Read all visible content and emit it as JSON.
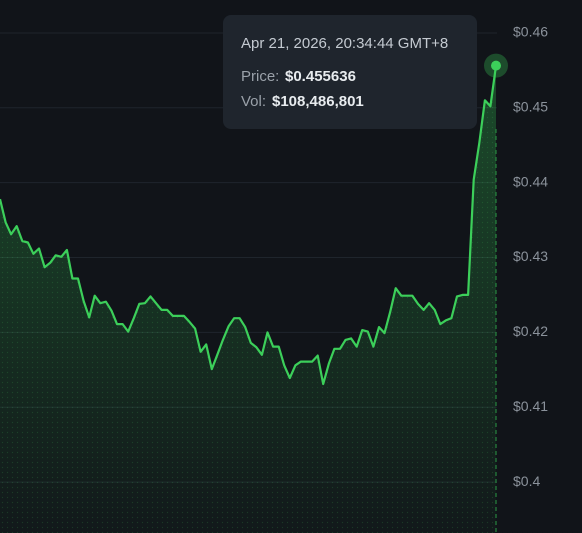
{
  "chart_data": {
    "type": "area",
    "values": [
      0.4378,
      0.4347,
      0.4331,
      0.4342,
      0.4322,
      0.432,
      0.4305,
      0.4312,
      0.4287,
      0.4293,
      0.4303,
      0.4301,
      0.431,
      0.4272,
      0.4272,
      0.4242,
      0.422,
      0.4249,
      0.4239,
      0.4241,
      0.4229,
      0.4211,
      0.4211,
      0.4201,
      0.4219,
      0.4238,
      0.4239,
      0.4248,
      0.4239,
      0.423,
      0.423,
      0.4222,
      0.4222,
      0.4222,
      0.4214,
      0.4205,
      0.4174,
      0.4184,
      0.4151,
      0.417,
      0.419,
      0.4208,
      0.4219,
      0.4219,
      0.4207,
      0.4186,
      0.418,
      0.417,
      0.42,
      0.4181,
      0.4181,
      0.4156,
      0.4139,
      0.4156,
      0.4161,
      0.4161,
      0.4161,
      0.4169,
      0.4131,
      0.4158,
      0.4178,
      0.4178,
      0.419,
      0.4192,
      0.4181,
      0.4203,
      0.4201,
      0.4181,
      0.4207,
      0.4199,
      0.4227,
      0.4259,
      0.4249,
      0.4249,
      0.4249,
      0.4238,
      0.423,
      0.4239,
      0.423,
      0.4211,
      0.4216,
      0.4219,
      0.4248,
      0.425,
      0.425,
      0.4404,
      0.4453,
      0.451,
      0.4502,
      0.455636
    ],
    "color": "#3ccf5a",
    "ylim": [
      0.3932,
      0.4644
    ],
    "yticks": [
      {
        "value": 0.46,
        "label": "$0.46"
      },
      {
        "value": 0.45,
        "label": "$0.45"
      },
      {
        "value": 0.44,
        "label": "$0.44"
      },
      {
        "value": 0.43,
        "label": "$0.43"
      },
      {
        "value": 0.42,
        "label": "$0.42"
      },
      {
        "value": 0.41,
        "label": "$0.41"
      },
      {
        "value": 0.4,
        "label": "$0.4"
      }
    ],
    "grid": true,
    "tooltip": {
      "date": "Apr 21, 2026, 20:34:44 GMT+8",
      "price_label": "Price:",
      "price": "$0.455636",
      "vol_label": "Vol:",
      "vol": "$108,486,801"
    }
  }
}
